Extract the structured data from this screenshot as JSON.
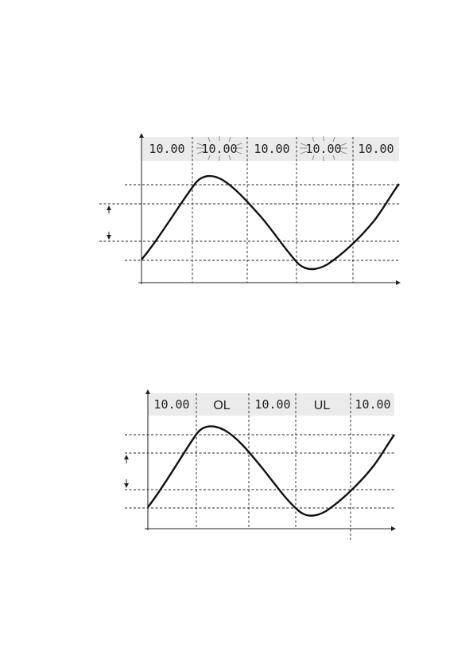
{
  "top_diagram": {
    "displays": [
      {
        "text": "10.00",
        "flashing": false
      },
      {
        "text": "10.00",
        "flashing": true
      },
      {
        "text": "10.00",
        "flashing": false
      },
      {
        "text": "10.00",
        "flashing": true
      },
      {
        "text": "10.00",
        "flashing": false
      }
    ]
  },
  "bottom_diagram": {
    "displays": [
      {
        "text": "10.00"
      },
      {
        "text": "OL"
      },
      {
        "text": "10.00"
      },
      {
        "text": "UL"
      },
      {
        "text": "10.00"
      }
    ]
  },
  "colors": {
    "line": "#111111",
    "panel": "#ebebeb",
    "grid": "#222222"
  }
}
